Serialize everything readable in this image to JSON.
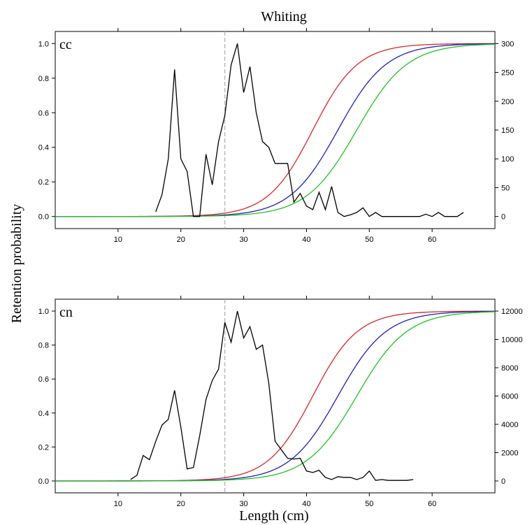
{
  "title": "Whiting",
  "ylabel": "Retention probability",
  "xlabel": "Length (cm)",
  "colors": {
    "red": "#d62728",
    "blue": "#1f1fb4",
    "green": "#22c022",
    "freq": "#000000",
    "refline": "#b0b0b0"
  },
  "chart_data": [
    {
      "type": "line",
      "panel_label": "cc",
      "xlim": [
        0,
        70
      ],
      "ylim": [
        -0.07,
        1.07
      ],
      "y2lim": [
        -21,
        321
      ],
      "x_ticks": [
        10,
        20,
        30,
        40,
        50,
        60
      ],
      "y_ticks": [
        0.0,
        0.2,
        0.4,
        0.6,
        0.8,
        1.0
      ],
      "y_tick_labels": [
        "0.0",
        "0.2",
        "0.4",
        "0.6",
        "0.8",
        "1.0"
      ],
      "y2_ticks": [
        0,
        50,
        100,
        150,
        200,
        250,
        300
      ],
      "reference_x": 27,
      "curves": [
        {
          "color_key": "red",
          "l50": 41,
          "slope": 0.28
        },
        {
          "color_key": "blue",
          "l50": 45,
          "slope": 0.26
        },
        {
          "color_key": "green",
          "l50": 48,
          "slope": 0.25
        }
      ],
      "frequency": {
        "x": [
          16,
          17,
          18,
          19,
          20,
          21,
          22,
          23,
          24,
          25,
          26,
          27,
          28,
          29,
          30,
          31,
          32,
          33,
          34,
          35,
          36,
          37,
          38,
          39,
          40,
          41,
          42,
          43,
          44,
          45,
          46,
          47,
          48,
          49,
          50,
          51,
          52,
          53,
          54,
          55,
          56,
          57,
          58,
          59,
          60,
          61,
          62,
          63,
          64,
          65
        ],
        "y": [
          8,
          38,
          100,
          255,
          100,
          78,
          0,
          0,
          108,
          55,
          130,
          175,
          263,
          300,
          215,
          260,
          180,
          130,
          120,
          92,
          92,
          92,
          25,
          40,
          18,
          12,
          42,
          12,
          52,
          7,
          0,
          3,
          7,
          15,
          0,
          7,
          0,
          0,
          0,
          0,
          0,
          0,
          0,
          4,
          0,
          7,
          0,
          0,
          0,
          7
        ]
      }
    },
    {
      "type": "line",
      "panel_label": "cn",
      "xlim": [
        0,
        70
      ],
      "ylim": [
        -0.07,
        1.07
      ],
      "y2lim": [
        -840,
        12840
      ],
      "x_ticks": [
        10,
        20,
        30,
        40,
        50,
        60
      ],
      "y_ticks": [
        0.0,
        0.2,
        0.4,
        0.6,
        0.8,
        1.0
      ],
      "y_tick_labels": [
        "0.0",
        "0.2",
        "0.4",
        "0.6",
        "0.8",
        "1.0"
      ],
      "y2_ticks": [
        0,
        2000,
        4000,
        6000,
        8000,
        10000,
        12000
      ],
      "reference_x": 27,
      "curves": [
        {
          "color_key": "red",
          "l50": 41,
          "slope": 0.28
        },
        {
          "color_key": "blue",
          "l50": 45,
          "slope": 0.26
        },
        {
          "color_key": "green",
          "l50": 48,
          "slope": 0.25
        }
      ],
      "frequency": {
        "x": [
          12,
          13,
          14,
          15,
          16,
          17,
          18,
          19,
          20,
          21,
          22,
          23,
          24,
          25,
          26,
          27,
          28,
          29,
          30,
          31,
          32,
          33,
          34,
          35,
          36,
          37,
          38,
          39,
          40,
          41,
          42,
          43,
          44,
          45,
          46,
          47,
          48,
          49,
          50,
          51,
          52,
          53,
          54,
          55,
          56,
          57
        ],
        "y": [
          100,
          400,
          1800,
          1500,
          2800,
          3950,
          4350,
          6400,
          3800,
          850,
          950,
          3200,
          5750,
          7100,
          7900,
          11200,
          9800,
          12000,
          10100,
          10900,
          9300,
          9600,
          6900,
          2800,
          2200,
          1600,
          1550,
          1600,
          700,
          600,
          750,
          250,
          100,
          300,
          250,
          250,
          100,
          250,
          700,
          40,
          100,
          40,
          40,
          40,
          40,
          100
        ]
      }
    }
  ]
}
